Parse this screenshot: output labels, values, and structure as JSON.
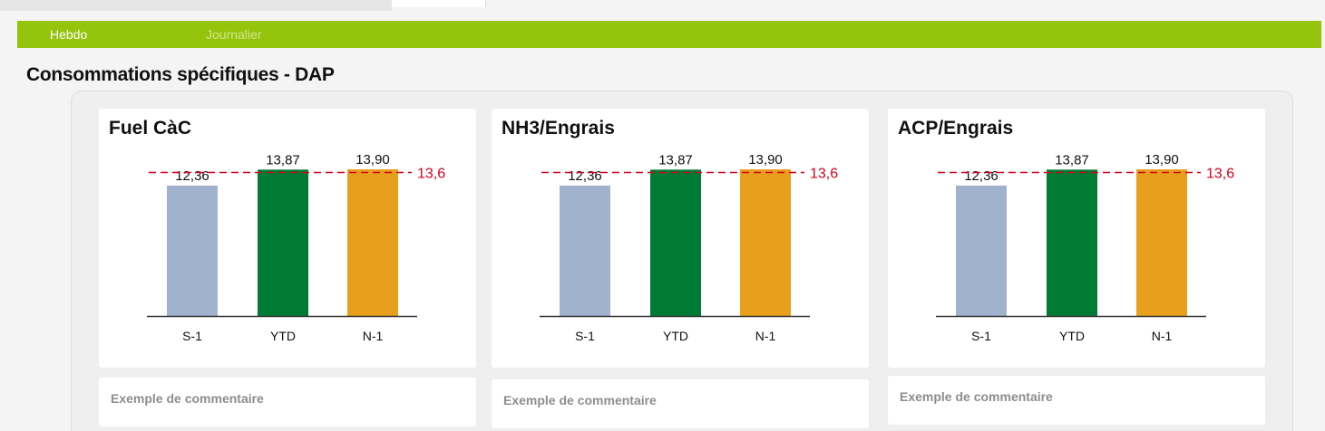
{
  "tabs": [
    {
      "label": "Hebdo",
      "active": true
    },
    {
      "label": "Journalier",
      "active": false
    }
  ],
  "page_title": "Consommations spécifiques - DAP",
  "colors": {
    "tab_bar": "#95c40c",
    "s_minus_1": "#a0b2ce",
    "ytd": "#007b34",
    "n_minus_1": "#e8a01c",
    "target": "#d5001c"
  },
  "chart_data": [
    {
      "type": "bar",
      "title": "Fuel CàC",
      "categories": [
        "S-1",
        "YTD",
        "N-1"
      ],
      "values": [
        12.36,
        13.87,
        13.9
      ],
      "value_labels": [
        "12,36",
        "13,87",
        "13,90"
      ],
      "target": 13.6,
      "target_label": "13,6",
      "grid": false,
      "comment": "Exemple de commentaire"
    },
    {
      "type": "bar",
      "title": "NH3/Engrais",
      "categories": [
        "S-1",
        "YTD",
        "N-1"
      ],
      "values": [
        12.36,
        13.87,
        13.9
      ],
      "value_labels": [
        "12,36",
        "13,87",
        "13,90"
      ],
      "target": 13.6,
      "target_label": "13,6",
      "grid": false,
      "comment": "Exemple de commentaire"
    },
    {
      "type": "bar",
      "title": "ACP/Engrais",
      "categories": [
        "S-1",
        "YTD",
        "N-1"
      ],
      "values": [
        12.36,
        13.87,
        13.9
      ],
      "value_labels": [
        "12,36",
        "13,87",
        "13,90"
      ],
      "target": 13.6,
      "target_label": "13,6",
      "grid": false,
      "comment": "Exemple de commentaire"
    }
  ]
}
